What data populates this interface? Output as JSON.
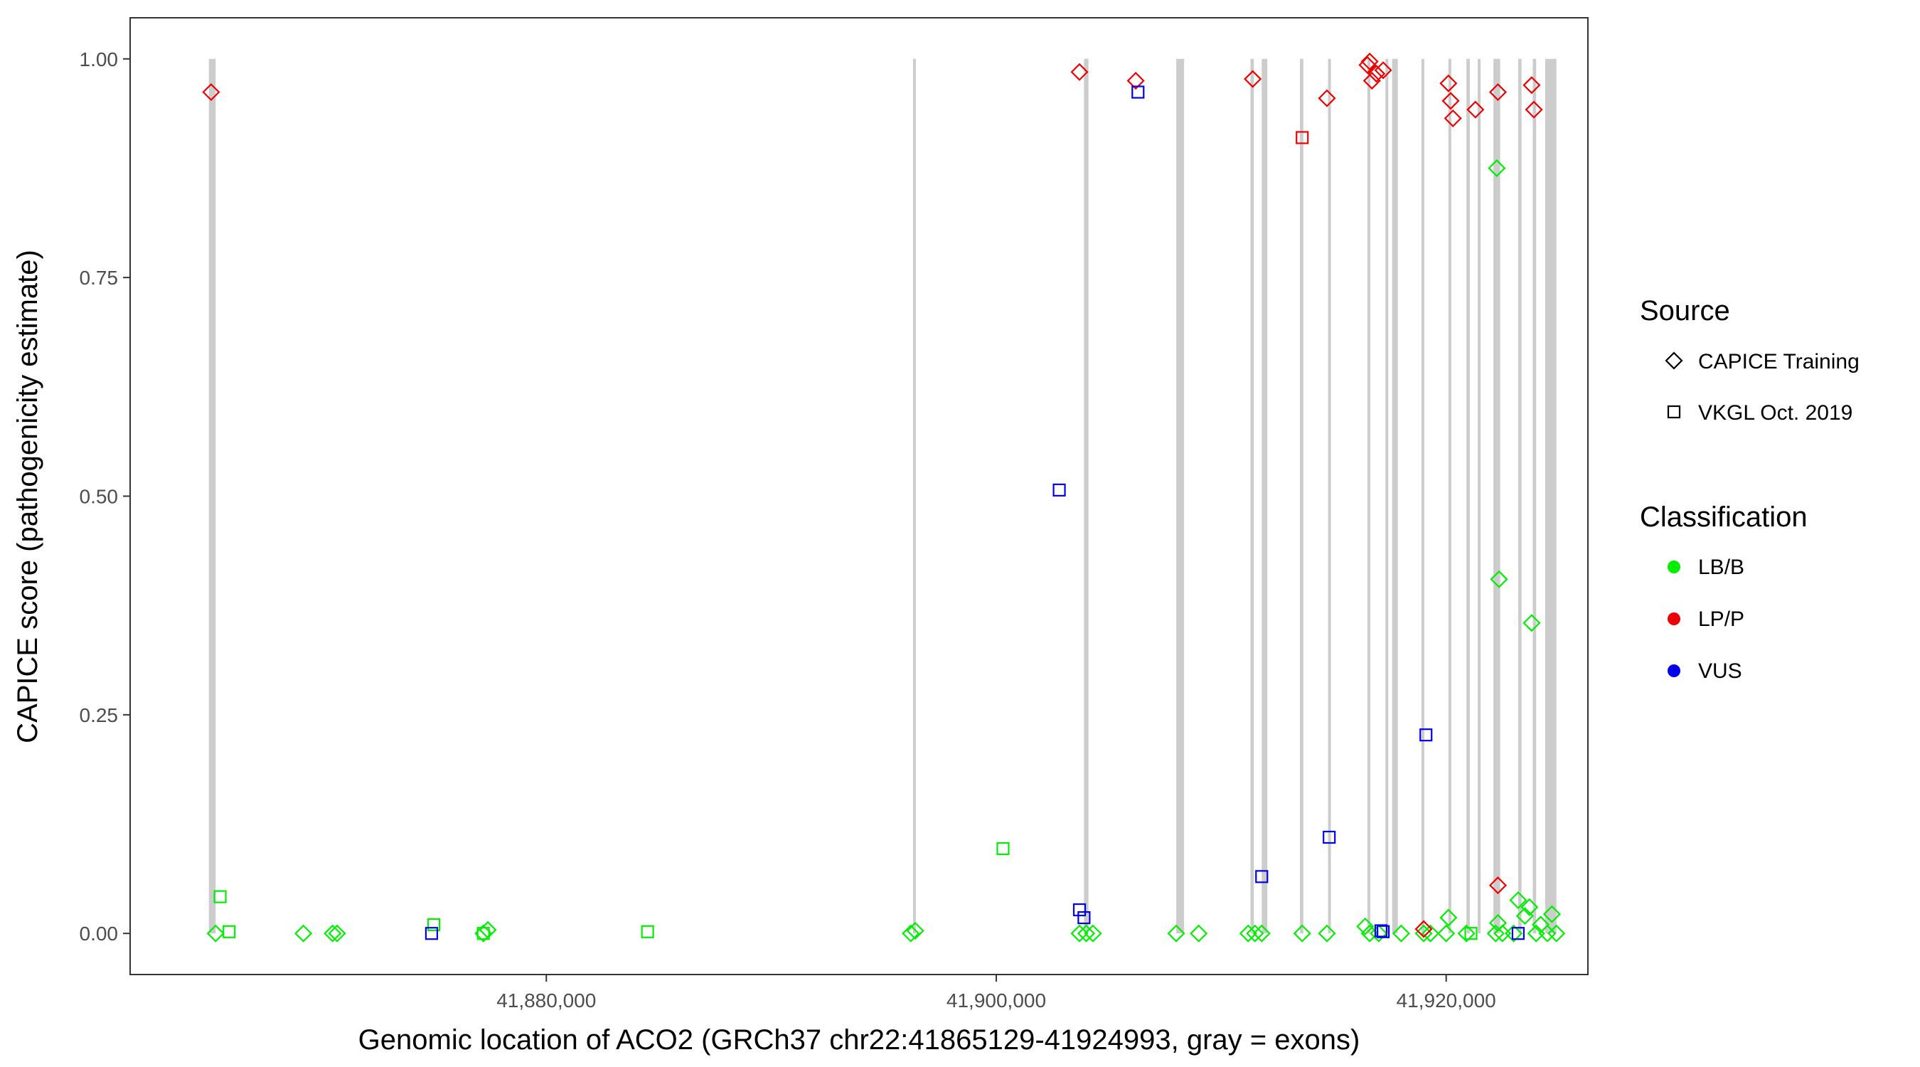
{
  "chart_data": {
    "type": "scatter",
    "xlabel": "Genomic location of ACO2 (GRCh37 chr22:41865129-41924993, gray = exons)",
    "ylabel": "CAPICE score (pathogenicity estimate)",
    "xlim": [
      41861500,
      41926300
    ],
    "ylim": [
      -0.047,
      1.047
    ],
    "x_ticks": [
      41880000,
      41900000,
      41920000
    ],
    "x_tick_labels": [
      "41,880,000",
      "41,900,000",
      "41,920,000"
    ],
    "y_ticks": [
      0,
      0.25,
      0.5,
      0.75,
      1
    ],
    "y_tick_labels": [
      "0.00",
      "0.25",
      "0.50",
      "0.75",
      "1.00"
    ],
    "grid": false,
    "exons": [
      [
        41865000,
        41865300
      ],
      [
        41896300,
        41896400
      ],
      [
        41903900,
        41904100
      ],
      [
        41908000,
        41908350
      ],
      [
        41911300,
        41911450
      ],
      [
        41911800,
        41912050
      ],
      [
        41913500,
        41913650
      ],
      [
        41914750,
        41914850
      ],
      [
        41916500,
        41916550
      ],
      [
        41917300,
        41917350
      ],
      [
        41917600,
        41917850
      ],
      [
        41918900,
        41919000
      ],
      [
        41920100,
        41920200
      ],
      [
        41920900,
        41921050
      ],
      [
        41921400,
        41921500
      ],
      [
        41922100,
        41922400
      ],
      [
        41923200,
        41923350
      ],
      [
        41923850,
        41924000
      ],
      [
        41924400,
        41924900
      ]
    ],
    "legend": {
      "position": "right",
      "source": {
        "title": "Source",
        "items": [
          {
            "label": "CAPICE Training",
            "shape": "diamond"
          },
          {
            "label": "VKGL Oct. 2019",
            "shape": "square"
          }
        ]
      },
      "classification": {
        "title": "Classification",
        "items": [
          {
            "label": "LB/B",
            "color": "#00ee00"
          },
          {
            "label": "LP/P",
            "color": "#ee0000"
          },
          {
            "label": "VUS",
            "color": "#0000ee"
          }
        ]
      }
    },
    "series": [
      {
        "source": "CAPICE Training",
        "classification": "LB/B",
        "points": [
          [
            41865300,
            0.0
          ],
          [
            41869200,
            0.0
          ],
          [
            41870500,
            0.0
          ],
          [
            41870700,
            0.0
          ],
          [
            41877200,
            0.0
          ],
          [
            41877400,
            0.004
          ],
          [
            41896200,
            0.0
          ],
          [
            41896400,
            0.003
          ],
          [
            41903700,
            0.0
          ],
          [
            41904000,
            0.0
          ],
          [
            41904300,
            0.0
          ],
          [
            41908000,
            0.0
          ],
          [
            41909000,
            0.0
          ],
          [
            41911200,
            0.0
          ],
          [
            41911500,
            0.0
          ],
          [
            41911800,
            0.0
          ],
          [
            41913600,
            0.0
          ],
          [
            41914700,
            0.0
          ],
          [
            41916400,
            0.008
          ],
          [
            41916600,
            0.0
          ],
          [
            41917000,
            0.0
          ],
          [
            41918000,
            0.0
          ],
          [
            41919000,
            0.0
          ],
          [
            41919300,
            0.0
          ],
          [
            41920000,
            0.0
          ],
          [
            41920100,
            0.018
          ],
          [
            41920900,
            0.0
          ],
          [
            41922200,
            0.0
          ],
          [
            41922300,
            0.012
          ],
          [
            41922250,
            0.875
          ],
          [
            41922350,
            0.405
          ],
          [
            41922500,
            0.0
          ],
          [
            41923000,
            0.0
          ],
          [
            41923200,
            0.038
          ],
          [
            41923500,
            0.02
          ],
          [
            41923700,
            0.03
          ],
          [
            41923800,
            0.355
          ],
          [
            41924000,
            0.0
          ],
          [
            41924200,
            0.01
          ],
          [
            41924500,
            0.0
          ],
          [
            41924700,
            0.022
          ],
          [
            41924900,
            0.0
          ]
        ]
      },
      {
        "source": "CAPICE Training",
        "classification": "LP/P",
        "points": [
          [
            41865100,
            0.962
          ],
          [
            41903700,
            0.985
          ],
          [
            41906200,
            0.975
          ],
          [
            41911400,
            0.977
          ],
          [
            41914700,
            0.955
          ],
          [
            41916500,
            0.993
          ],
          [
            41916600,
            0.997
          ],
          [
            41916700,
            0.975
          ],
          [
            41916900,
            0.983
          ],
          [
            41917200,
            0.987
          ],
          [
            41919000,
            0.005
          ],
          [
            41920100,
            0.972
          ],
          [
            41920200,
            0.952
          ],
          [
            41920300,
            0.932
          ],
          [
            41921300,
            0.942
          ],
          [
            41922300,
            0.962
          ],
          [
            41922300,
            0.055
          ],
          [
            41923800,
            0.97
          ],
          [
            41923900,
            0.942
          ]
        ]
      },
      {
        "source": "VKGL Oct. 2019",
        "classification": "LB/B",
        "points": [
          [
            41865500,
            0.042
          ],
          [
            41865900,
            0.002
          ],
          [
            41875000,
            0.01
          ],
          [
            41877200,
            0.0
          ],
          [
            41884500,
            0.002
          ],
          [
            41900300,
            0.097
          ],
          [
            41921100,
            0.0
          ]
        ]
      },
      {
        "source": "VKGL Oct. 2019",
        "classification": "LP/P",
        "points": [
          [
            41913600,
            0.91
          ]
        ]
      },
      {
        "source": "VKGL Oct. 2019",
        "classification": "VUS",
        "points": [
          [
            41874900,
            0.0
          ],
          [
            41902800,
            0.507
          ],
          [
            41903700,
            0.027
          ],
          [
            41903900,
            0.018
          ],
          [
            41906300,
            0.962
          ],
          [
            41911800,
            0.065
          ],
          [
            41914800,
            0.11
          ],
          [
            41917100,
            0.003
          ],
          [
            41917200,
            0.002
          ],
          [
            41919100,
            0.227
          ],
          [
            41923200,
            0.0
          ]
        ]
      }
    ]
  }
}
